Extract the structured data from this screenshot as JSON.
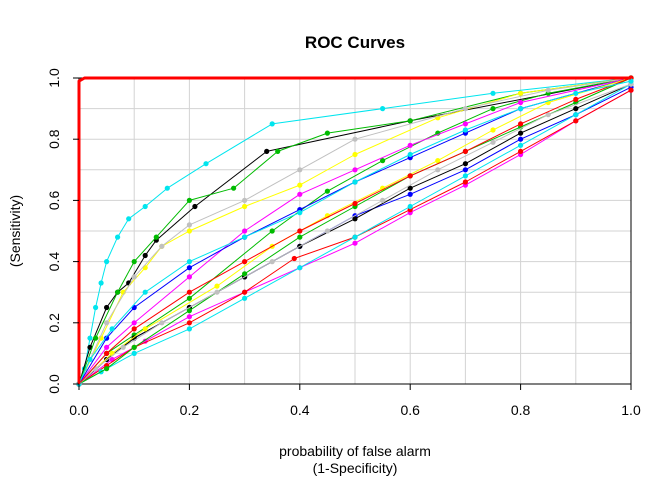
{
  "chart_data": {
    "type": "line",
    "title": "ROC Curves",
    "xlabel": "probability of false alarm",
    "xlabel2": "(1-Specificity)",
    "ylabel": "(Sensitivity)",
    "xlim": [
      0,
      1
    ],
    "ylim": [
      0,
      1
    ],
    "xticks": [
      "0.0",
      "0.2",
      "0.4",
      "0.6",
      "0.8",
      "1.0"
    ],
    "yticks": [
      "0.0",
      "0.2",
      "0.4",
      "0.6",
      "0.8",
      "1.0"
    ],
    "grid": true,
    "legend": "none",
    "series": [
      {
        "color": "#ff0000",
        "markers": false,
        "width": 3,
        "points": [
          [
            0,
            0
          ],
          [
            0,
            0.99
          ],
          [
            0.01,
            1.0
          ],
          [
            1,
            1
          ]
        ]
      },
      {
        "color": "#00e5ee",
        "markers": true,
        "points": [
          [
            0,
            0
          ],
          [
            0.01,
            0.05
          ],
          [
            0.02,
            0.15
          ],
          [
            0.03,
            0.25
          ],
          [
            0.04,
            0.33
          ],
          [
            0.05,
            0.4
          ],
          [
            0.07,
            0.48
          ],
          [
            0.09,
            0.54
          ],
          [
            0.12,
            0.58
          ],
          [
            0.16,
            0.64
          ],
          [
            0.23,
            0.72
          ],
          [
            0.35,
            0.85
          ],
          [
            0.55,
            0.9
          ],
          [
            0.75,
            0.95
          ],
          [
            1,
            1
          ]
        ]
      },
      {
        "color": "#000000",
        "markers": true,
        "points": [
          [
            0,
            0
          ],
          [
            0.02,
            0.12
          ],
          [
            0.05,
            0.25
          ],
          [
            0.07,
            0.3
          ],
          [
            0.09,
            0.33
          ],
          [
            0.12,
            0.42
          ],
          [
            0.14,
            0.47
          ],
          [
            0.21,
            0.58
          ],
          [
            0.34,
            0.76
          ],
          [
            0.6,
            0.86
          ],
          [
            1,
            1
          ]
        ]
      },
      {
        "color": "#00bb00",
        "markers": true,
        "points": [
          [
            0,
            0
          ],
          [
            0.03,
            0.15
          ],
          [
            0.07,
            0.3
          ],
          [
            0.1,
            0.4
          ],
          [
            0.14,
            0.48
          ],
          [
            0.2,
            0.6
          ],
          [
            0.28,
            0.64
          ],
          [
            0.36,
            0.76
          ],
          [
            0.45,
            0.82
          ],
          [
            0.6,
            0.86
          ],
          [
            0.8,
            0.95
          ],
          [
            1,
            1
          ]
        ]
      },
      {
        "color": "#00bb00",
        "markers": true,
        "points": [
          [
            0,
            0
          ],
          [
            0.05,
            0.1
          ],
          [
            0.1,
            0.16
          ],
          [
            0.2,
            0.28
          ],
          [
            0.35,
            0.5
          ],
          [
            0.45,
            0.63
          ],
          [
            0.55,
            0.73
          ],
          [
            0.65,
            0.82
          ],
          [
            0.75,
            0.9
          ],
          [
            0.85,
            0.95
          ],
          [
            1,
            1
          ]
        ]
      },
      {
        "color": "#ffff00",
        "markers": true,
        "points": [
          [
            0,
            0
          ],
          [
            0.04,
            0.15
          ],
          [
            0.08,
            0.3
          ],
          [
            0.12,
            0.38
          ],
          [
            0.15,
            0.45
          ],
          [
            0.2,
            0.5
          ],
          [
            0.3,
            0.58
          ],
          [
            0.4,
            0.65
          ],
          [
            0.5,
            0.75
          ],
          [
            0.65,
            0.87
          ],
          [
            0.8,
            0.95
          ],
          [
            1,
            1
          ]
        ]
      },
      {
        "color": "#c0c0c0",
        "markers": true,
        "points": [
          [
            0,
            0
          ],
          [
            0.05,
            0.2
          ],
          [
            0.1,
            0.35
          ],
          [
            0.15,
            0.45
          ],
          [
            0.2,
            0.52
          ],
          [
            0.3,
            0.6
          ],
          [
            0.4,
            0.7
          ],
          [
            0.5,
            0.8
          ],
          [
            0.7,
            0.9
          ],
          [
            0.85,
            0.96
          ],
          [
            1,
            1
          ]
        ]
      },
      {
        "color": "#0000ff",
        "markers": true,
        "points": [
          [
            0,
            0
          ],
          [
            0.05,
            0.08
          ],
          [
            0.1,
            0.15
          ],
          [
            0.2,
            0.25
          ],
          [
            0.3,
            0.35
          ],
          [
            0.4,
            0.45
          ],
          [
            0.5,
            0.55
          ],
          [
            0.6,
            0.62
          ],
          [
            0.7,
            0.7
          ],
          [
            0.8,
            0.8
          ],
          [
            0.9,
            0.88
          ],
          [
            1,
            0.97
          ]
        ]
      },
      {
        "color": "#ff00ff",
        "markers": true,
        "points": [
          [
            0,
            0
          ],
          [
            0.06,
            0.08
          ],
          [
            0.12,
            0.14
          ],
          [
            0.2,
            0.22
          ],
          [
            0.3,
            0.3
          ],
          [
            0.4,
            0.38
          ],
          [
            0.5,
            0.46
          ],
          [
            0.6,
            0.56
          ],
          [
            0.7,
            0.65
          ],
          [
            0.8,
            0.75
          ],
          [
            0.9,
            0.86
          ],
          [
            1,
            0.96
          ]
        ]
      },
      {
        "color": "#ff0000",
        "markers": true,
        "points": [
          [
            0,
            0
          ],
          [
            0.05,
            0.06
          ],
          [
            0.1,
            0.12
          ],
          [
            0.2,
            0.2
          ],
          [
            0.3,
            0.3
          ],
          [
            0.39,
            0.41
          ],
          [
            0.5,
            0.48
          ],
          [
            0.6,
            0.57
          ],
          [
            0.7,
            0.66
          ],
          [
            0.8,
            0.76
          ],
          [
            0.9,
            0.86
          ],
          [
            1,
            0.96
          ]
        ]
      },
      {
        "color": "#000000",
        "markers": true,
        "points": [
          [
            0,
            0
          ],
          [
            0.05,
            0.08
          ],
          [
            0.1,
            0.15
          ],
          [
            0.2,
            0.25
          ],
          [
            0.3,
            0.35
          ],
          [
            0.4,
            0.45
          ],
          [
            0.5,
            0.54
          ],
          [
            0.6,
            0.64
          ],
          [
            0.7,
            0.72
          ],
          [
            0.8,
            0.82
          ],
          [
            0.9,
            0.9
          ],
          [
            1,
            0.98
          ]
        ]
      },
      {
        "color": "#00e5ee",
        "markers": true,
        "points": [
          [
            0,
            0
          ],
          [
            0.04,
            0.04
          ],
          [
            0.1,
            0.1
          ],
          [
            0.2,
            0.18
          ],
          [
            0.3,
            0.28
          ],
          [
            0.4,
            0.38
          ],
          [
            0.5,
            0.48
          ],
          [
            0.6,
            0.58
          ],
          [
            0.7,
            0.68
          ],
          [
            0.8,
            0.78
          ],
          [
            0.9,
            0.88
          ],
          [
            1,
            0.98
          ]
        ]
      },
      {
        "color": "#ff00ff",
        "markers": true,
        "points": [
          [
            0,
            0
          ],
          [
            0.05,
            0.12
          ],
          [
            0.1,
            0.2
          ],
          [
            0.2,
            0.35
          ],
          [
            0.3,
            0.5
          ],
          [
            0.4,
            0.62
          ],
          [
            0.5,
            0.7
          ],
          [
            0.6,
            0.78
          ],
          [
            0.7,
            0.85
          ],
          [
            0.8,
            0.92
          ],
          [
            1,
            1
          ]
        ]
      },
      {
        "color": "#0000ff",
        "markers": true,
        "points": [
          [
            0,
            0
          ],
          [
            0.05,
            0.15
          ],
          [
            0.1,
            0.25
          ],
          [
            0.2,
            0.38
          ],
          [
            0.3,
            0.48
          ],
          [
            0.4,
            0.57
          ],
          [
            0.5,
            0.66
          ],
          [
            0.6,
            0.74
          ],
          [
            0.7,
            0.82
          ],
          [
            0.8,
            0.9
          ],
          [
            1,
            1
          ]
        ]
      },
      {
        "color": "#ffff00",
        "markers": true,
        "points": [
          [
            0,
            0
          ],
          [
            0.06,
            0.1
          ],
          [
            0.12,
            0.18
          ],
          [
            0.25,
            0.32
          ],
          [
            0.35,
            0.45
          ],
          [
            0.45,
            0.55
          ],
          [
            0.55,
            0.64
          ],
          [
            0.65,
            0.73
          ],
          [
            0.75,
            0.83
          ],
          [
            0.85,
            0.92
          ],
          [
            1,
            1
          ]
        ]
      },
      {
        "color": "#00bb00",
        "markers": true,
        "points": [
          [
            0,
            0
          ],
          [
            0.05,
            0.05
          ],
          [
            0.1,
            0.12
          ],
          [
            0.2,
            0.24
          ],
          [
            0.3,
            0.36
          ],
          [
            0.4,
            0.48
          ],
          [
            0.5,
            0.58
          ],
          [
            0.6,
            0.68
          ],
          [
            0.7,
            0.76
          ],
          [
            0.8,
            0.84
          ],
          [
            0.9,
            0.92
          ],
          [
            1,
            1
          ]
        ]
      },
      {
        "color": "#c0c0c0",
        "markers": true,
        "points": [
          [
            0,
            0
          ],
          [
            0.03,
            0.05
          ],
          [
            0.08,
            0.12
          ],
          [
            0.15,
            0.2
          ],
          [
            0.25,
            0.3
          ],
          [
            0.35,
            0.4
          ],
          [
            0.45,
            0.5
          ],
          [
            0.55,
            0.6
          ],
          [
            0.65,
            0.7
          ],
          [
            0.75,
            0.79
          ],
          [
            0.85,
            0.88
          ],
          [
            1,
            0.98
          ]
        ]
      },
      {
        "color": "#ff0000",
        "markers": true,
        "points": [
          [
            0,
            0
          ],
          [
            0.05,
            0.1
          ],
          [
            0.1,
            0.18
          ],
          [
            0.2,
            0.3
          ],
          [
            0.3,
            0.4
          ],
          [
            0.4,
            0.5
          ],
          [
            0.5,
            0.59
          ],
          [
            0.6,
            0.68
          ],
          [
            0.7,
            0.76
          ],
          [
            0.8,
            0.85
          ],
          [
            0.9,
            0.93
          ],
          [
            1,
            1
          ]
        ]
      },
      {
        "color": "#00e5ee",
        "markers": true,
        "points": [
          [
            0,
            0
          ],
          [
            0.02,
            0.08
          ],
          [
            0.06,
            0.18
          ],
          [
            0.12,
            0.3
          ],
          [
            0.2,
            0.4
          ],
          [
            0.3,
            0.48
          ],
          [
            0.4,
            0.56
          ],
          [
            0.5,
            0.66
          ],
          [
            0.6,
            0.75
          ],
          [
            0.7,
            0.83
          ],
          [
            0.8,
            0.9
          ],
          [
            0.9,
            0.95
          ],
          [
            1,
            0.99
          ]
        ]
      }
    ]
  }
}
